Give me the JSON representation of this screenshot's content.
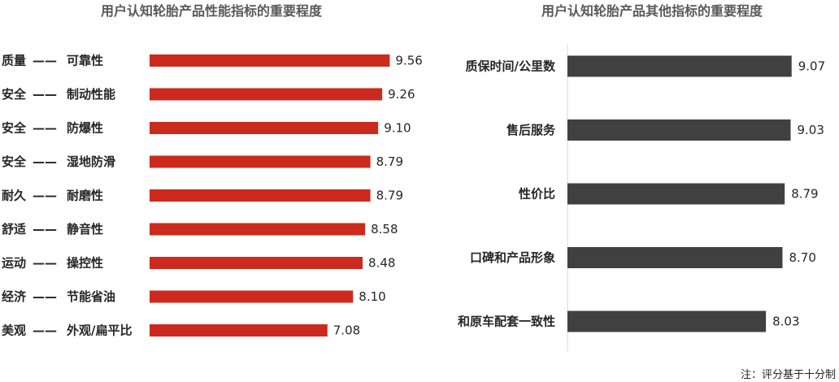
{
  "chart_data": [
    {
      "type": "bar",
      "orientation": "horizontal",
      "title": "用户认知轮胎产品性能指标的重要程度",
      "categories": [
        {
          "group": "质量",
          "item": "可靠性"
        },
        {
          "group": "安全",
          "item": "制动性能"
        },
        {
          "group": "安全",
          "item": "防爆性"
        },
        {
          "group": "安全",
          "item": "湿地防滑"
        },
        {
          "group": "耐久",
          "item": "耐磨性"
        },
        {
          "group": "舒适",
          "item": "静音性"
        },
        {
          "group": "运动",
          "item": "操控性"
        },
        {
          "group": "经济",
          "item": "节能省油"
        },
        {
          "group": "美观",
          "item": "外观/扁平比"
        }
      ],
      "values": [
        9.56,
        9.26,
        9.1,
        8.79,
        8.79,
        8.58,
        8.48,
        8.1,
        7.08
      ],
      "value_labels": [
        "9.56",
        "9.26",
        "9.10",
        "8.79",
        "8.79",
        "8.58",
        "8.48",
        "8.10",
        "7.08"
      ],
      "color": "#cc2a1f",
      "separator": "——",
      "xlim": [
        0,
        10
      ],
      "grid": false
    },
    {
      "type": "bar",
      "orientation": "horizontal",
      "title": "用户认知轮胎产品其他指标的重要程度",
      "categories": [
        "质保时间/公里数",
        "售后服务",
        "性价比",
        "口碑和产品形象",
        "和原车配套一致性"
      ],
      "values": [
        9.07,
        9.03,
        8.79,
        8.7,
        8.03
      ],
      "value_labels": [
        "9.07",
        "9.03",
        "8.79",
        "8.70",
        "8.03"
      ],
      "color": "#404040",
      "xlim": [
        0,
        10
      ],
      "grid": false
    }
  ],
  "footnote": "注：评分基于十分制"
}
